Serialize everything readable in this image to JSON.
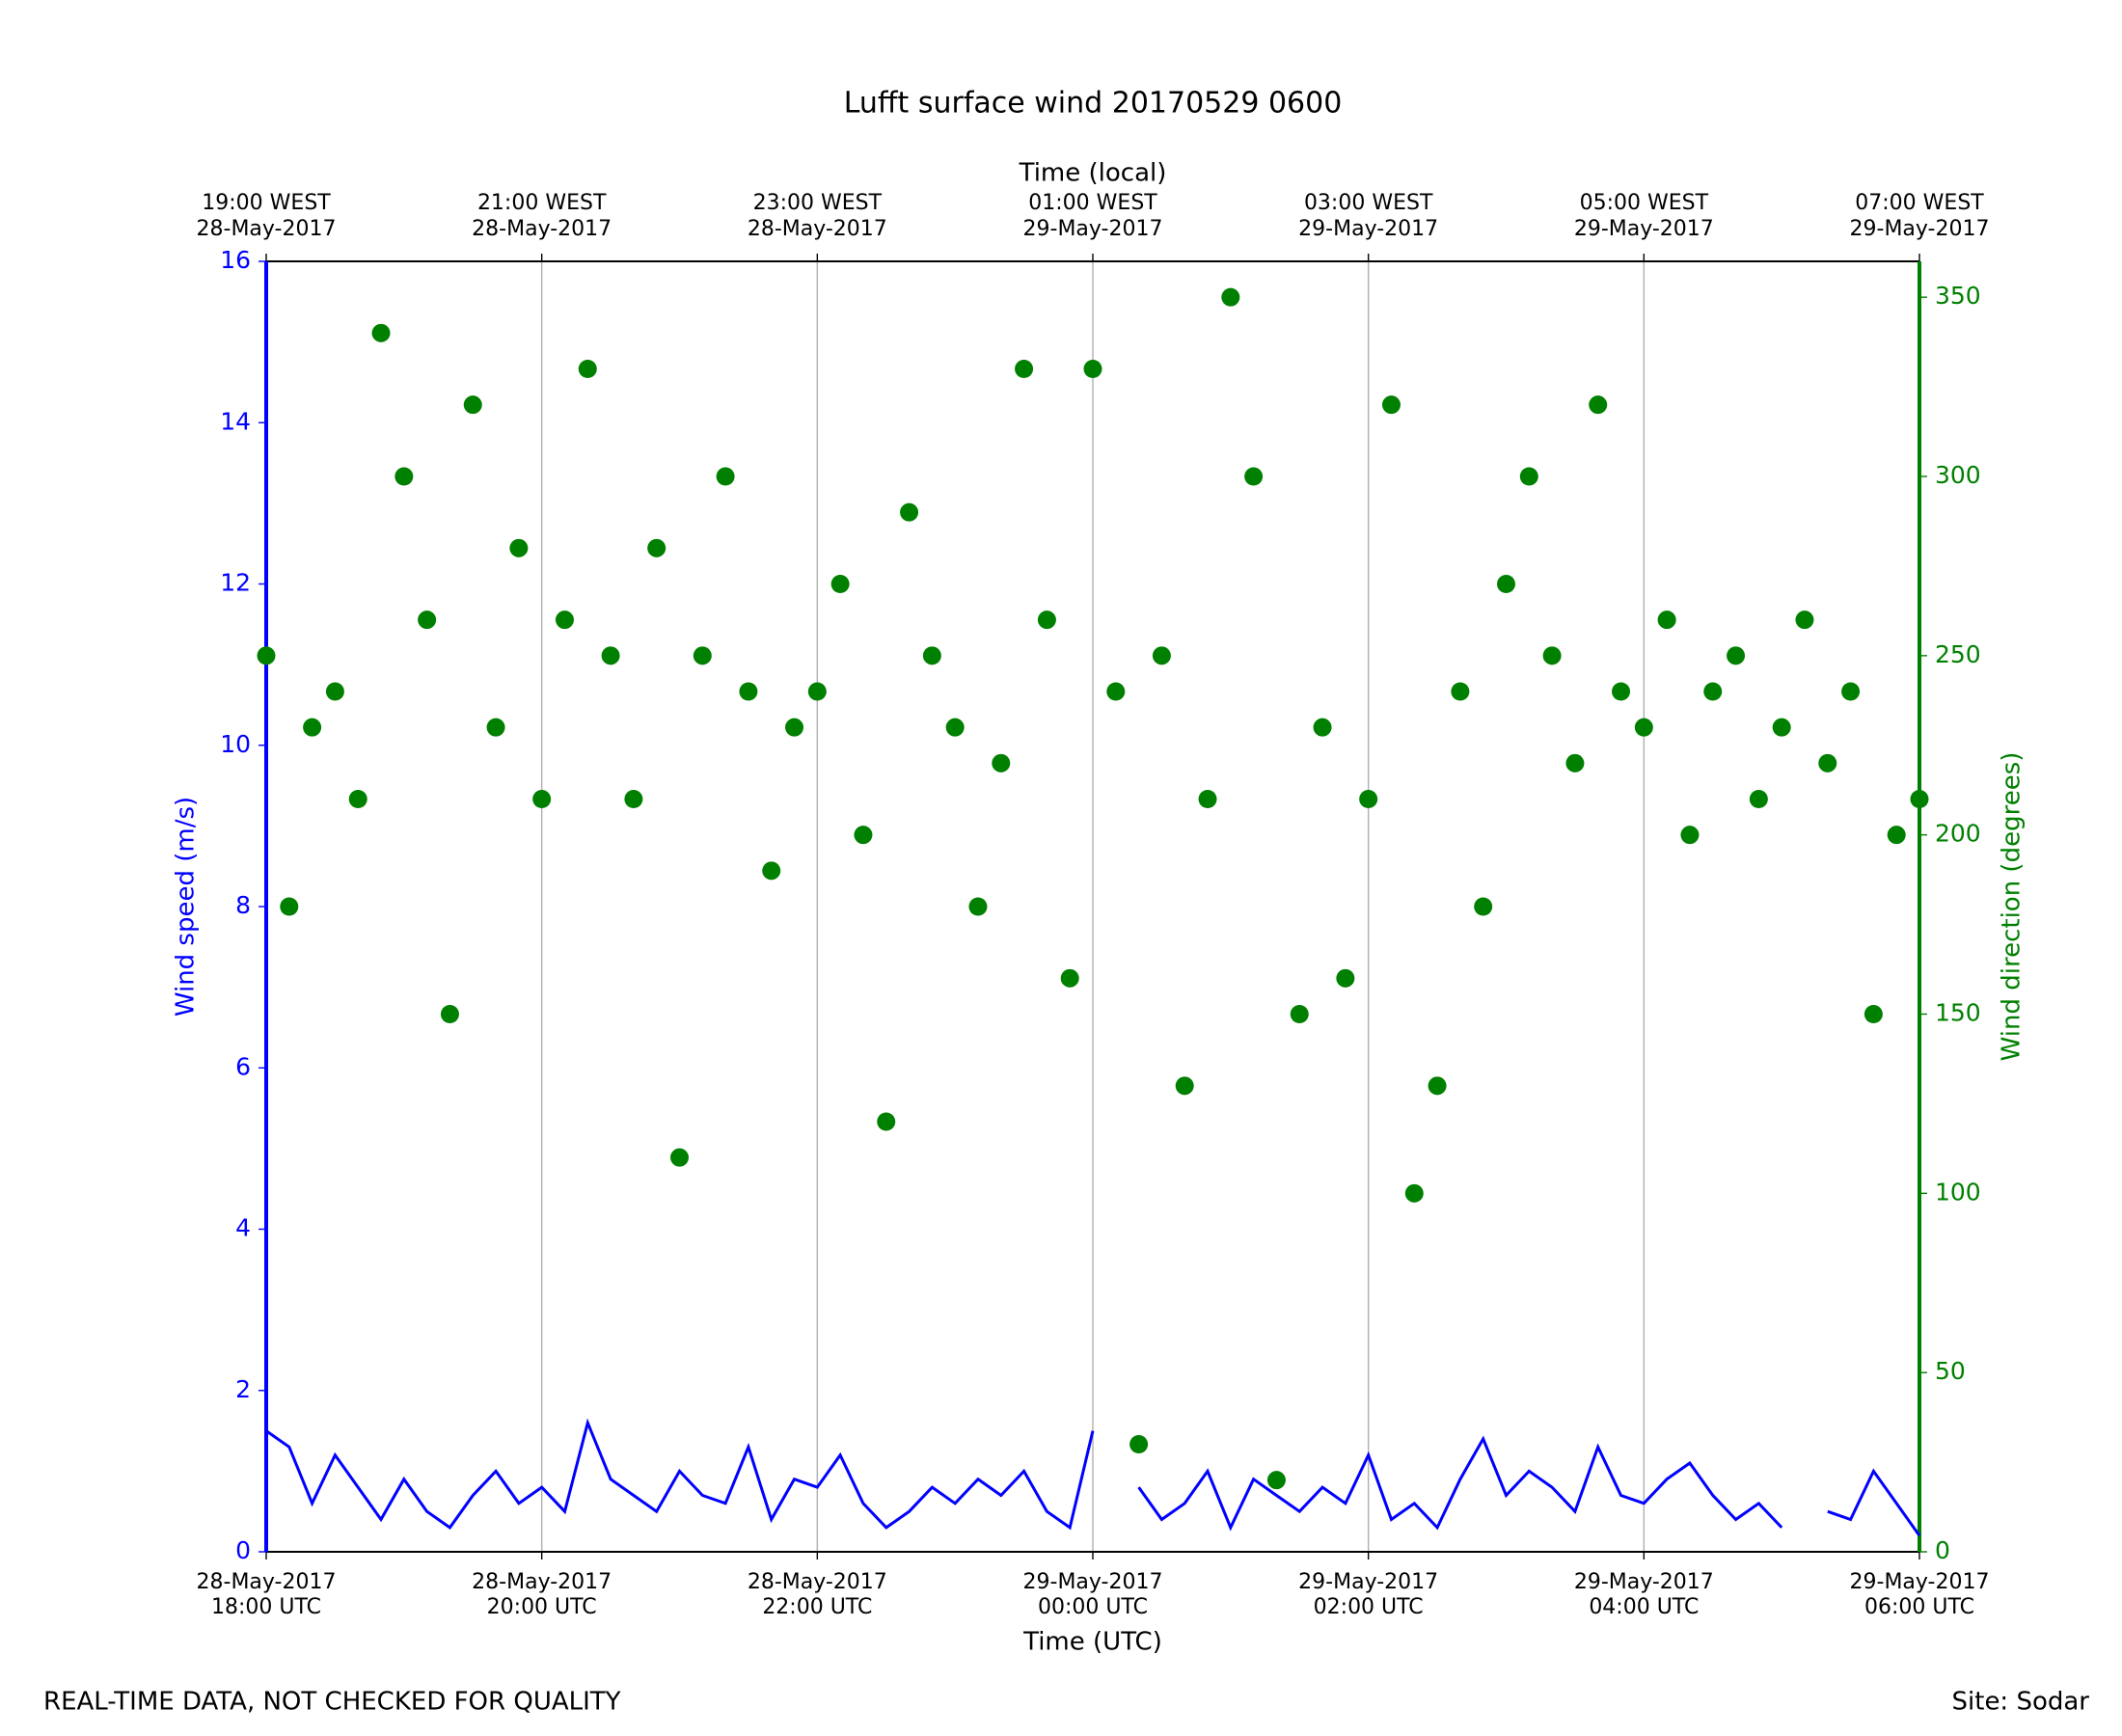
{
  "chart_data": {
    "type": "line",
    "title": "Lufft surface wind 20170529 0600",
    "x_label": "Time (UTC)",
    "x2_label": "Time (local)",
    "y_label": "Wind speed (m/s)",
    "y2_label": "Wind direction (degrees)",
    "footer_left": "REAL-TIME DATA, NOT CHECKED FOR QUALITY",
    "footer_right": "Site: Sodar",
    "x": [
      "2017-05-28T18:00",
      "2017-05-28T18:10",
      "2017-05-28T18:20",
      "2017-05-28T18:30",
      "2017-05-28T18:40",
      "2017-05-28T18:50",
      "2017-05-28T19:00",
      "2017-05-28T19:10",
      "2017-05-28T19:20",
      "2017-05-28T19:30",
      "2017-05-28T19:40",
      "2017-05-28T19:50",
      "2017-05-28T20:00",
      "2017-05-28T20:10",
      "2017-05-28T20:20",
      "2017-05-28T20:30",
      "2017-05-28T20:40",
      "2017-05-28T20:50",
      "2017-05-28T21:00",
      "2017-05-28T21:10",
      "2017-05-28T21:20",
      "2017-05-28T21:30",
      "2017-05-28T21:40",
      "2017-05-28T21:50",
      "2017-05-28T22:00",
      "2017-05-28T22:10",
      "2017-05-28T22:20",
      "2017-05-28T22:30",
      "2017-05-28T22:40",
      "2017-05-28T22:50",
      "2017-05-28T23:00",
      "2017-05-28T23:10",
      "2017-05-28T23:20",
      "2017-05-28T23:30",
      "2017-05-28T23:40",
      "2017-05-28T23:50",
      "2017-05-29T00:00",
      "2017-05-29T00:10",
      "2017-05-29T00:20",
      "2017-05-29T00:30",
      "2017-05-29T00:40",
      "2017-05-29T00:50",
      "2017-05-29T01:00",
      "2017-05-29T01:10",
      "2017-05-29T01:20",
      "2017-05-29T01:30",
      "2017-05-29T01:40",
      "2017-05-29T01:50",
      "2017-05-29T02:00",
      "2017-05-29T02:10",
      "2017-05-29T02:20",
      "2017-05-29T02:30",
      "2017-05-29T02:40",
      "2017-05-29T02:50",
      "2017-05-29T03:00",
      "2017-05-29T03:10",
      "2017-05-29T03:20",
      "2017-05-29T03:30",
      "2017-05-29T03:40",
      "2017-05-29T03:50",
      "2017-05-29T04:00",
      "2017-05-29T04:10",
      "2017-05-29T04:20",
      "2017-05-29T04:30",
      "2017-05-29T04:40",
      "2017-05-29T04:50",
      "2017-05-29T05:00",
      "2017-05-29T05:10",
      "2017-05-29T05:20",
      "2017-05-29T05:30",
      "2017-05-29T05:40",
      "2017-05-29T05:50",
      "2017-05-29T06:00"
    ],
    "xlim": [
      "2017-05-28T18:00",
      "2017-05-29T06:00"
    ],
    "xticks": [
      {
        "value": "2017-05-28T18:00",
        "label": [
          "28-May-2017",
          "18:00 UTC"
        ]
      },
      {
        "value": "2017-05-28T20:00",
        "label": [
          "28-May-2017",
          "20:00 UTC"
        ]
      },
      {
        "value": "2017-05-28T22:00",
        "label": [
          "28-May-2017",
          "22:00 UTC"
        ]
      },
      {
        "value": "2017-05-29T00:00",
        "label": [
          "29-May-2017",
          "00:00 UTC"
        ]
      },
      {
        "value": "2017-05-29T02:00",
        "label": [
          "29-May-2017",
          "02:00 UTC"
        ]
      },
      {
        "value": "2017-05-29T04:00",
        "label": [
          "29-May-2017",
          "04:00 UTC"
        ]
      },
      {
        "value": "2017-05-29T06:00",
        "label": [
          "29-May-2017",
          "06:00 UTC"
        ]
      }
    ],
    "x2ticks": [
      {
        "value": "2017-05-28T18:00",
        "label": [
          "19:00 WEST",
          "28-May-2017"
        ]
      },
      {
        "value": "2017-05-28T20:00",
        "label": [
          "21:00 WEST",
          "28-May-2017"
        ]
      },
      {
        "value": "2017-05-28T22:00",
        "label": [
          "23:00 WEST",
          "28-May-2017"
        ]
      },
      {
        "value": "2017-05-29T00:00",
        "label": [
          "01:00 WEST",
          "29-May-2017"
        ]
      },
      {
        "value": "2017-05-29T02:00",
        "label": [
          "03:00 WEST",
          "29-May-2017"
        ]
      },
      {
        "value": "2017-05-29T04:00",
        "label": [
          "05:00 WEST",
          "29-May-2017"
        ]
      },
      {
        "value": "2017-05-29T06:00",
        "label": [
          "07:00 WEST",
          "29-May-2017"
        ]
      }
    ],
    "ylim": [
      0,
      16
    ],
    "yticks": [
      0,
      2,
      4,
      6,
      8,
      10,
      12,
      14,
      16
    ],
    "y2lim": [
      0,
      360
    ],
    "y2ticks": [
      0,
      50,
      100,
      150,
      200,
      250,
      300,
      350
    ],
    "grid": true,
    "series": [
      {
        "name": "Wind speed",
        "type": "line",
        "axis": "y",
        "color": "#0000ff",
        "values": [
          1.5,
          1.3,
          0.6,
          1.2,
          0.8,
          0.4,
          0.9,
          0.5,
          0.3,
          0.7,
          1.0,
          0.6,
          0.8,
          0.5,
          1.6,
          0.9,
          0.7,
          0.5,
          1.0,
          0.7,
          0.6,
          1.3,
          0.4,
          0.9,
          0.8,
          1.2,
          0.6,
          0.3,
          0.5,
          0.8,
          0.6,
          0.9,
          0.7,
          1.0,
          0.5,
          0.3,
          1.5,
          null,
          0.8,
          0.4,
          0.6,
          1.0,
          0.3,
          0.9,
          0.7,
          0.5,
          0.8,
          0.6,
          1.2,
          0.4,
          0.6,
          0.3,
          0.9,
          1.4,
          0.7,
          1.0,
          0.8,
          0.5,
          1.3,
          0.7,
          0.6,
          0.9,
          1.1,
          0.7,
          0.4,
          0.6,
          0.3,
          null,
          0.5,
          0.4,
          1.0,
          0.6,
          0.2
        ]
      },
      {
        "name": "Wind direction",
        "type": "scatter",
        "axis": "y2",
        "color": "#008000",
        "values": [
          250,
          180,
          230,
          240,
          210,
          340,
          300,
          260,
          150,
          320,
          230,
          280,
          210,
          260,
          330,
          250,
          210,
          280,
          110,
          250,
          300,
          240,
          190,
          230,
          240,
          270,
          200,
          120,
          290,
          250,
          230,
          180,
          220,
          330,
          260,
          160,
          330,
          240,
          30,
          250,
          130,
          210,
          350,
          300,
          20,
          150,
          230,
          160,
          210,
          320,
          100,
          130,
          240,
          180,
          270,
          300,
          250,
          220,
          320,
          240,
          230,
          260,
          200,
          240,
          250,
          210,
          230,
          260,
          220,
          240,
          150,
          200,
          210
        ]
      }
    ]
  }
}
